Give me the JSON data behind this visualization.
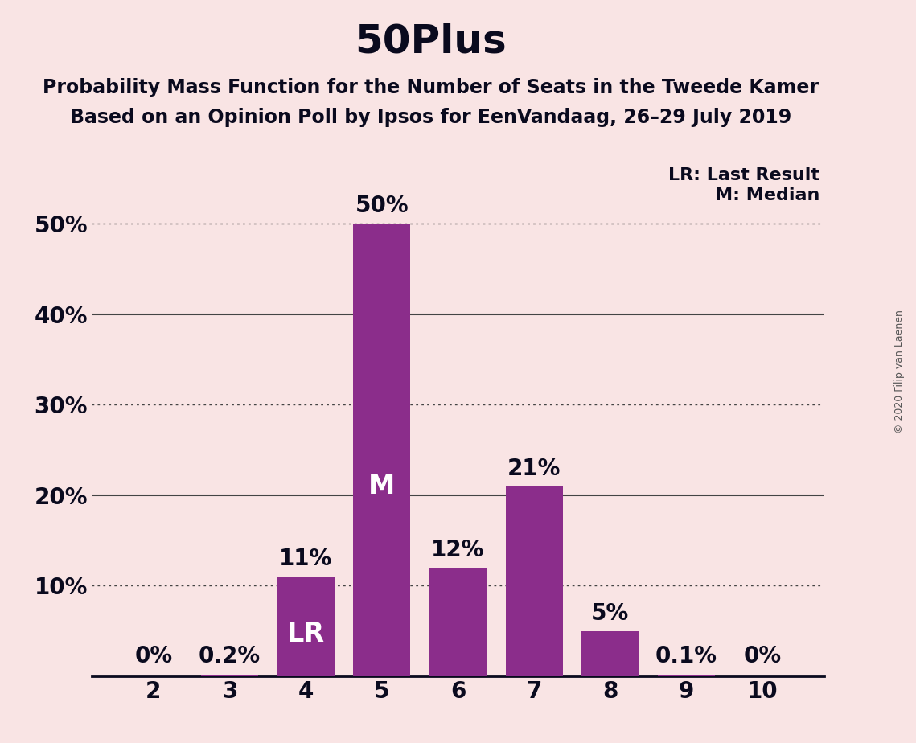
{
  "title": "50Plus",
  "subtitle1": "Probability Mass Function for the Number of Seats in the Tweede Kamer",
  "subtitle2": "Based on an Opinion Poll by Ipsos for EenVandaag, 26–29 July 2019",
  "copyright": "© 2020 Filip van Laenen",
  "categories": [
    2,
    3,
    4,
    5,
    6,
    7,
    8,
    9,
    10
  ],
  "values": [
    0.0,
    0.2,
    11.0,
    50.0,
    12.0,
    21.0,
    5.0,
    0.1,
    0.0
  ],
  "bar_color": "#8B2D8B",
  "background_color": "#F9E4E4",
  "ylim": [
    0,
    55
  ],
  "yticks": [
    0,
    10,
    20,
    30,
    40,
    50
  ],
  "ytick_labels": [
    "",
    "10%",
    "20%",
    "30%",
    "40%",
    "50%"
  ],
  "solid_lines": [
    20,
    40
  ],
  "dotted_lines": [
    10,
    30,
    50
  ],
  "legend_lr": "LR: Last Result",
  "legend_m": "M: Median",
  "bar_labels": [
    "0%",
    "0.2%",
    "11%",
    "50%",
    "12%",
    "21%",
    "5%",
    "0.1%",
    "0%"
  ],
  "inside_labels": [
    {
      "bar_index": 3,
      "text": "M",
      "color": "white"
    },
    {
      "bar_index": 2,
      "text": "LR",
      "color": "white"
    }
  ],
  "title_fontsize": 36,
  "subtitle_fontsize": 17,
  "label_fontsize": 20,
  "tick_fontsize": 20,
  "legend_fontsize": 16,
  "inside_label_fontsize": 24,
  "text_color": "#0a0a1e",
  "grid_color": "#444444",
  "copyright_color": "#555555"
}
